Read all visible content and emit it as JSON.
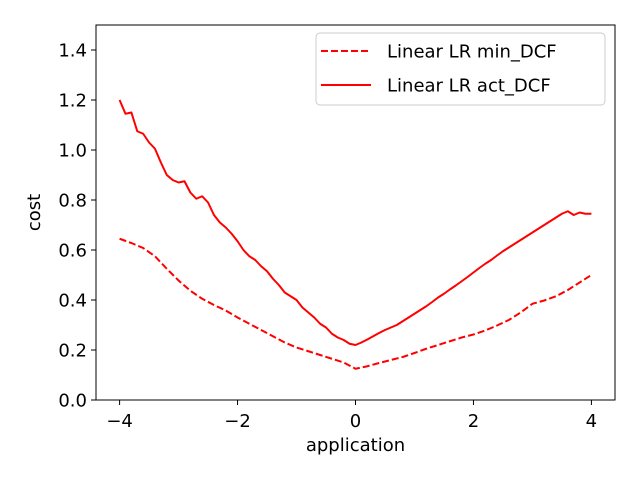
{
  "chart_data": {
    "type": "line",
    "title": "",
    "xlabel": "application",
    "ylabel": "cost",
    "xlim": [
      -4.4,
      4.4
    ],
    "ylim": [
      0.0,
      1.5
    ],
    "xticks": [
      -4,
      -2,
      0,
      2,
      4
    ],
    "xtick_labels": [
      "−4",
      "−2",
      "0",
      "2",
      "4"
    ],
    "yticks": [
      0.0,
      0.2,
      0.4,
      0.6,
      0.8,
      1.0,
      1.2,
      1.4
    ],
    "ytick_labels": [
      "0.0",
      "0.2",
      "0.4",
      "0.6",
      "0.8",
      "1.0",
      "1.2",
      "1.4"
    ],
    "grid": false,
    "legend_position": "top-right",
    "series": [
      {
        "name": "Linear LR min_DCF",
        "color": "#ff0000",
        "style": "dashed",
        "x": [
          -4.0,
          -3.8,
          -3.6,
          -3.4,
          -3.2,
          -3.0,
          -2.8,
          -2.6,
          -2.4,
          -2.2,
          -2.0,
          -1.8,
          -1.6,
          -1.4,
          -1.2,
          -1.0,
          -0.8,
          -0.6,
          -0.4,
          -0.2,
          0.0,
          0.2,
          0.4,
          0.6,
          0.8,
          1.0,
          1.2,
          1.4,
          1.6,
          1.8,
          2.0,
          2.2,
          2.4,
          2.6,
          2.8,
          3.0,
          3.2,
          3.4,
          3.6,
          3.8,
          4.0
        ],
        "y": [
          0.645,
          0.628,
          0.608,
          0.575,
          0.525,
          0.478,
          0.437,
          0.405,
          0.38,
          0.358,
          0.33,
          0.305,
          0.28,
          0.255,
          0.23,
          0.21,
          0.195,
          0.18,
          0.165,
          0.15,
          0.125,
          0.135,
          0.148,
          0.16,
          0.172,
          0.188,
          0.205,
          0.22,
          0.235,
          0.25,
          0.262,
          0.278,
          0.298,
          0.32,
          0.35,
          0.385,
          0.398,
          0.415,
          0.44,
          0.47,
          0.5
        ]
      },
      {
        "name": "Linear LR act_DCF",
        "color": "#ff0000",
        "style": "solid",
        "x": [
          -4.0,
          -3.9,
          -3.8,
          -3.7,
          -3.6,
          -3.5,
          -3.4,
          -3.3,
          -3.2,
          -3.1,
          -3.0,
          -2.9,
          -2.8,
          -2.7,
          -2.6,
          -2.5,
          -2.4,
          -2.3,
          -2.2,
          -2.1,
          -2.0,
          -1.9,
          -1.8,
          -1.7,
          -1.6,
          -1.5,
          -1.4,
          -1.3,
          -1.2,
          -1.1,
          -1.0,
          -0.9,
          -0.8,
          -0.7,
          -0.6,
          -0.5,
          -0.4,
          -0.3,
          -0.2,
          -0.1,
          0.0,
          0.1,
          0.2,
          0.3,
          0.4,
          0.5,
          0.6,
          0.7,
          0.8,
          0.9,
          1.0,
          1.1,
          1.2,
          1.3,
          1.4,
          1.5,
          1.6,
          1.7,
          1.8,
          1.9,
          2.0,
          2.1,
          2.2,
          2.3,
          2.4,
          2.5,
          2.6,
          2.7,
          2.8,
          2.9,
          3.0,
          3.1,
          3.2,
          3.3,
          3.4,
          3.5,
          3.6,
          3.7,
          3.8,
          3.9,
          4.0
        ],
        "y": [
          1.2,
          1.145,
          1.15,
          1.075,
          1.065,
          1.03,
          1.005,
          0.95,
          0.9,
          0.88,
          0.87,
          0.875,
          0.83,
          0.805,
          0.815,
          0.79,
          0.74,
          0.71,
          0.69,
          0.665,
          0.635,
          0.6,
          0.575,
          0.56,
          0.535,
          0.515,
          0.485,
          0.46,
          0.43,
          0.415,
          0.4,
          0.37,
          0.35,
          0.33,
          0.305,
          0.29,
          0.265,
          0.25,
          0.24,
          0.225,
          0.22,
          0.23,
          0.242,
          0.255,
          0.268,
          0.28,
          0.29,
          0.3,
          0.315,
          0.33,
          0.345,
          0.36,
          0.375,
          0.392,
          0.41,
          0.425,
          0.442,
          0.458,
          0.475,
          0.492,
          0.51,
          0.528,
          0.545,
          0.56,
          0.578,
          0.595,
          0.61,
          0.625,
          0.64,
          0.655,
          0.67,
          0.685,
          0.7,
          0.715,
          0.73,
          0.745,
          0.755,
          0.74,
          0.75,
          0.745,
          0.745
        ]
      }
    ]
  }
}
